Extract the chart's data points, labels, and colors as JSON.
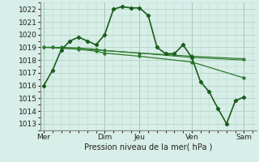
{
  "background_color": "#d8eee8",
  "grid_color": "#b0d4c4",
  "line_color_dark": "#1a5c1a",
  "line_color_mid": "#2d7a2d",
  "xlabel": "Pression niveau de la mer( hPa )",
  "ylim": [
    1012.5,
    1022.5
  ],
  "xlim": [
    -0.2,
    12.2
  ],
  "xtick_labels": [
    "Mer",
    "",
    "Dim",
    "Jeu",
    "",
    "Ven",
    "",
    "Sam"
  ],
  "xtick_positions": [
    0,
    1.75,
    3.5,
    5.5,
    7.0,
    8.5,
    10.0,
    11.5
  ],
  "vlines": [
    0,
    3.5,
    5.5,
    8.5,
    11.5
  ],
  "series_main": {
    "x": [
      0,
      0.5,
      1.0,
      1.5,
      2.0,
      2.5,
      3.0,
      3.5,
      4.0,
      4.5,
      5.0,
      5.5,
      6.0,
      6.5,
      7.0,
      7.5,
      8.0,
      8.5,
      9.0,
      9.5,
      10.0,
      10.5,
      11.0,
      11.5
    ],
    "y": [
      1016.0,
      1017.2,
      1018.8,
      1019.5,
      1019.8,
      1019.5,
      1019.2,
      1020.0,
      1022.0,
      1022.2,
      1022.1,
      1022.1,
      1021.5,
      1019.0,
      1018.5,
      1018.5,
      1019.2,
      1018.2,
      1016.3,
      1015.5,
      1014.2,
      1013.0,
      1014.8,
      1015.1
    ]
  },
  "series_flat1": {
    "x": [
      0,
      0.5,
      1.0,
      2.0,
      3.0,
      3.5,
      5.5,
      8.5,
      11.5
    ],
    "y": [
      1019.0,
      1019.0,
      1019.0,
      1018.95,
      1018.85,
      1018.75,
      1018.55,
      1018.3,
      1018.1
    ]
  },
  "series_flat2": {
    "x": [
      0,
      0.5,
      1.0,
      2.0,
      3.0,
      3.5,
      5.5,
      8.5,
      11.5
    ],
    "y": [
      1019.0,
      1019.0,
      1018.95,
      1018.85,
      1018.7,
      1018.55,
      1018.3,
      1017.85,
      1016.6
    ]
  },
  "series_flat3": {
    "x": [
      0,
      3.5,
      5.5,
      8.5,
      11.5
    ],
    "y": [
      1019.0,
      1018.75,
      1018.55,
      1018.2,
      1018.0
    ]
  }
}
